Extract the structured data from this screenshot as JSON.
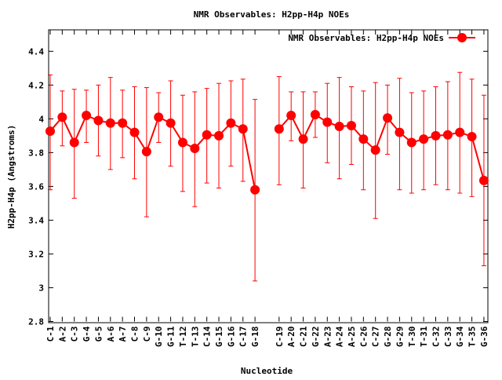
{
  "chart_data": {
    "type": "line",
    "title": "NMR Observables: H2pp-H4p NOEs",
    "xlabel": "Nucleotide",
    "ylabel": "H2pp-H4p (Angstroms)",
    "ylim": [
      2.8,
      4.527
    ],
    "yticks": [
      "2.8",
      "3",
      "3.2",
      "3.4",
      "3.6",
      "3.8",
      "4",
      "4.2",
      "4.4"
    ],
    "ytick_values": [
      2.8,
      3.0,
      3.2,
      3.4,
      3.6,
      3.8,
      4.0,
      4.2,
      4.4
    ],
    "xlim": [
      0.87,
      37.33
    ],
    "legend": {
      "label": "NMR Observables: H2pp-H4p NOEs",
      "position": "top-right"
    },
    "color": "#ff0000",
    "series": [
      {
        "name": "NMR Observables: H2pp-H4p NOEs",
        "segments": [
          [
            {
              "label": "C-1",
              "x": 1,
              "y": 3.927,
              "lo": 3.58,
              "hi": 4.26
            },
            {
              "label": "A-2",
              "x": 2,
              "y": 4.01,
              "lo": 3.84,
              "hi": 4.165
            },
            {
              "label": "C-3",
              "x": 3,
              "y": 3.86,
              "lo": 3.53,
              "hi": 4.175
            },
            {
              "label": "G-4",
              "x": 4,
              "y": 4.02,
              "lo": 3.86,
              "hi": 4.17
            },
            {
              "label": "G-5",
              "x": 5,
              "y": 3.99,
              "lo": 3.78,
              "hi": 4.2
            },
            {
              "label": "A-6",
              "x": 6,
              "y": 3.975,
              "lo": 3.7,
              "hi": 4.245
            },
            {
              "label": "A-7",
              "x": 7,
              "y": 3.975,
              "lo": 3.77,
              "hi": 4.17
            },
            {
              "label": "C-8",
              "x": 8,
              "y": 3.92,
              "lo": 3.645,
              "hi": 4.19
            },
            {
              "label": "C-9",
              "x": 9,
              "y": 3.806,
              "lo": 3.42,
              "hi": 4.185
            },
            {
              "label": "G-10",
              "x": 10,
              "y": 4.01,
              "lo": 3.86,
              "hi": 4.155
            },
            {
              "label": "G-11",
              "x": 11,
              "y": 3.975,
              "lo": 3.72,
              "hi": 4.225
            },
            {
              "label": "T-12",
              "x": 12,
              "y": 3.86,
              "lo": 3.57,
              "hi": 4.14
            },
            {
              "label": "T-13",
              "x": 13,
              "y": 3.825,
              "lo": 3.48,
              "hi": 4.16
            },
            {
              "label": "C-14",
              "x": 14,
              "y": 3.905,
              "lo": 3.62,
              "hi": 4.18
            },
            {
              "label": "G-15",
              "x": 15,
              "y": 3.9,
              "lo": 3.59,
              "hi": 4.21
            },
            {
              "label": "G-16",
              "x": 16,
              "y": 3.975,
              "lo": 3.72,
              "hi": 4.225
            },
            {
              "label": "C-17",
              "x": 17,
              "y": 3.94,
              "lo": 3.63,
              "hi": 4.235
            },
            {
              "label": "G-18",
              "x": 18,
              "y": 3.58,
              "lo": 3.04,
              "hi": 4.115
            }
          ],
          [
            {
              "label": "C-19",
              "x": 20,
              "y": 3.94,
              "lo": 3.61,
              "hi": 4.25
            },
            {
              "label": "A-20",
              "x": 21,
              "y": 4.02,
              "lo": 3.87,
              "hi": 4.16
            },
            {
              "label": "C-21",
              "x": 22,
              "y": 3.88,
              "lo": 3.59,
              "hi": 4.16
            },
            {
              "label": "G-22",
              "x": 23,
              "y": 4.025,
              "lo": 3.89,
              "hi": 4.16
            },
            {
              "label": "A-23",
              "x": 24,
              "y": 3.98,
              "lo": 3.74,
              "hi": 4.21
            },
            {
              "label": "A-24",
              "x": 25,
              "y": 3.955,
              "lo": 3.645,
              "hi": 4.245
            },
            {
              "label": "A-25",
              "x": 26,
              "y": 3.96,
              "lo": 3.73,
              "hi": 4.19
            },
            {
              "label": "C-26",
              "x": 27,
              "y": 3.88,
              "lo": 3.58,
              "hi": 4.165
            },
            {
              "label": "C-27",
              "x": 28,
              "y": 3.815,
              "lo": 3.41,
              "hi": 4.215
            },
            {
              "label": "G-28",
              "x": 29,
              "y": 4.005,
              "lo": 3.79,
              "hi": 4.2
            },
            {
              "label": "G-29",
              "x": 30,
              "y": 3.92,
              "lo": 3.58,
              "hi": 4.24
            },
            {
              "label": "T-30",
              "x": 31,
              "y": 3.86,
              "lo": 3.56,
              "hi": 4.155
            },
            {
              "label": "T-31",
              "x": 32,
              "y": 3.88,
              "lo": 3.58,
              "hi": 4.165
            },
            {
              "label": "C-32",
              "x": 33,
              "y": 3.9,
              "lo": 3.61,
              "hi": 4.19
            },
            {
              "label": "C-33",
              "x": 34,
              "y": 3.905,
              "lo": 3.58,
              "hi": 4.22
            },
            {
              "label": "G-34",
              "x": 35,
              "y": 3.92,
              "lo": 3.56,
              "hi": 4.275
            },
            {
              "label": "T-35",
              "x": 36,
              "y": 3.895,
              "lo": 3.54,
              "hi": 4.235
            },
            {
              "label": "G-36",
              "x": 37,
              "y": 3.635,
              "lo": 3.13,
              "hi": 4.14
            }
          ]
        ]
      }
    ]
  }
}
